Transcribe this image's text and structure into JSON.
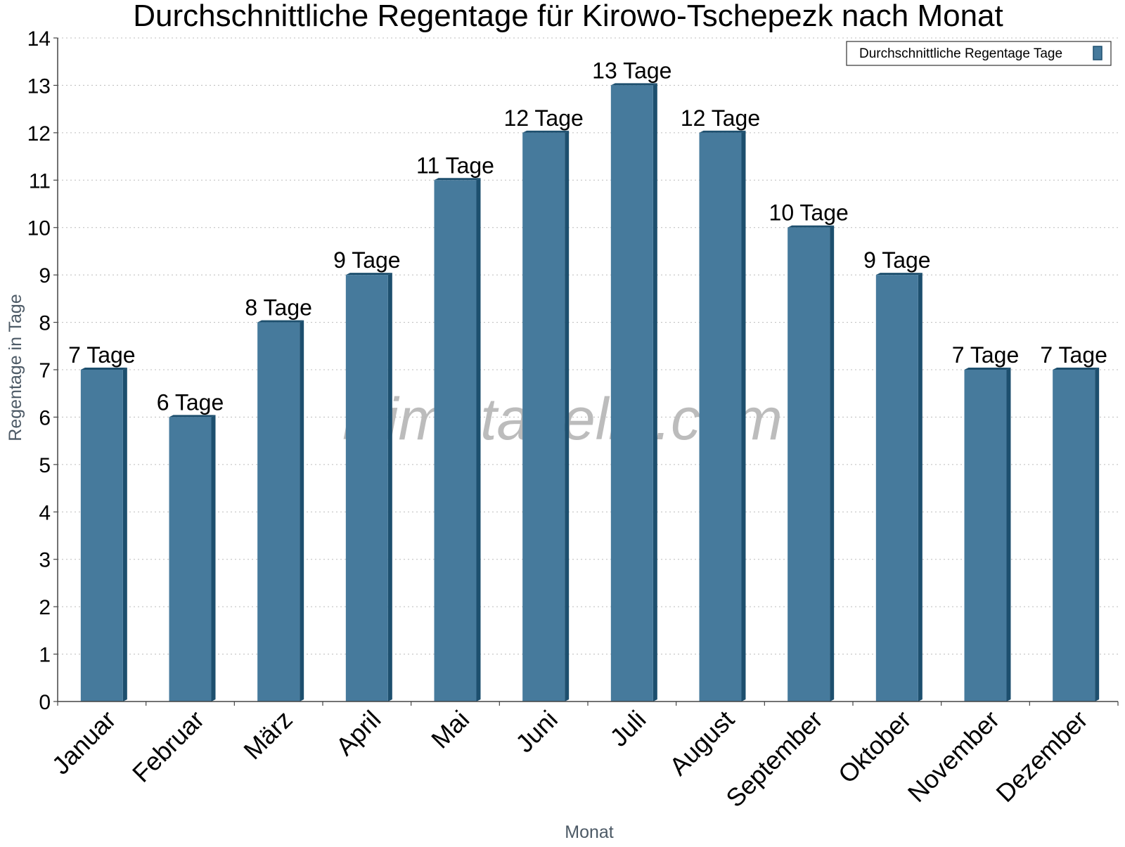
{
  "chart_data": {
    "type": "bar",
    "title": "Durchschnittliche Regentage für Kirowo-Tschepezk nach Monat",
    "xlabel": "Monat",
    "ylabel": "Regentage in Tage",
    "ylim": [
      0,
      14
    ],
    "yticks": [
      0,
      1,
      2,
      3,
      4,
      5,
      6,
      7,
      8,
      9,
      10,
      11,
      12,
      13,
      14
    ],
    "grid": true,
    "legend_position": "top-right",
    "categories": [
      "Januar",
      "Februar",
      "März",
      "April",
      "Mai",
      "Juni",
      "Juli",
      "August",
      "September",
      "Oktober",
      "November",
      "Dezember"
    ],
    "series": [
      {
        "name": "Durchschnittliche Regentage Tage",
        "values": [
          7,
          6,
          8,
          9,
          11,
          12,
          13,
          12,
          10,
          9,
          7,
          7
        ],
        "data_labels": [
          "7 Tage",
          "6 Tage",
          "8 Tage",
          "9 Tage",
          "11 Tage",
          "12 Tage",
          "13 Tage",
          "12 Tage",
          "10 Tage",
          "9 Tage",
          "7 Tage",
          "7 Tage"
        ],
        "color": "#467a9c",
        "side_color": "#1d4f6e"
      }
    ]
  },
  "watermark": "klimatabelle.com",
  "colors": {
    "grid": "#bcbcbc",
    "axis": "#444444",
    "axis_title": "#4d5a66"
  }
}
